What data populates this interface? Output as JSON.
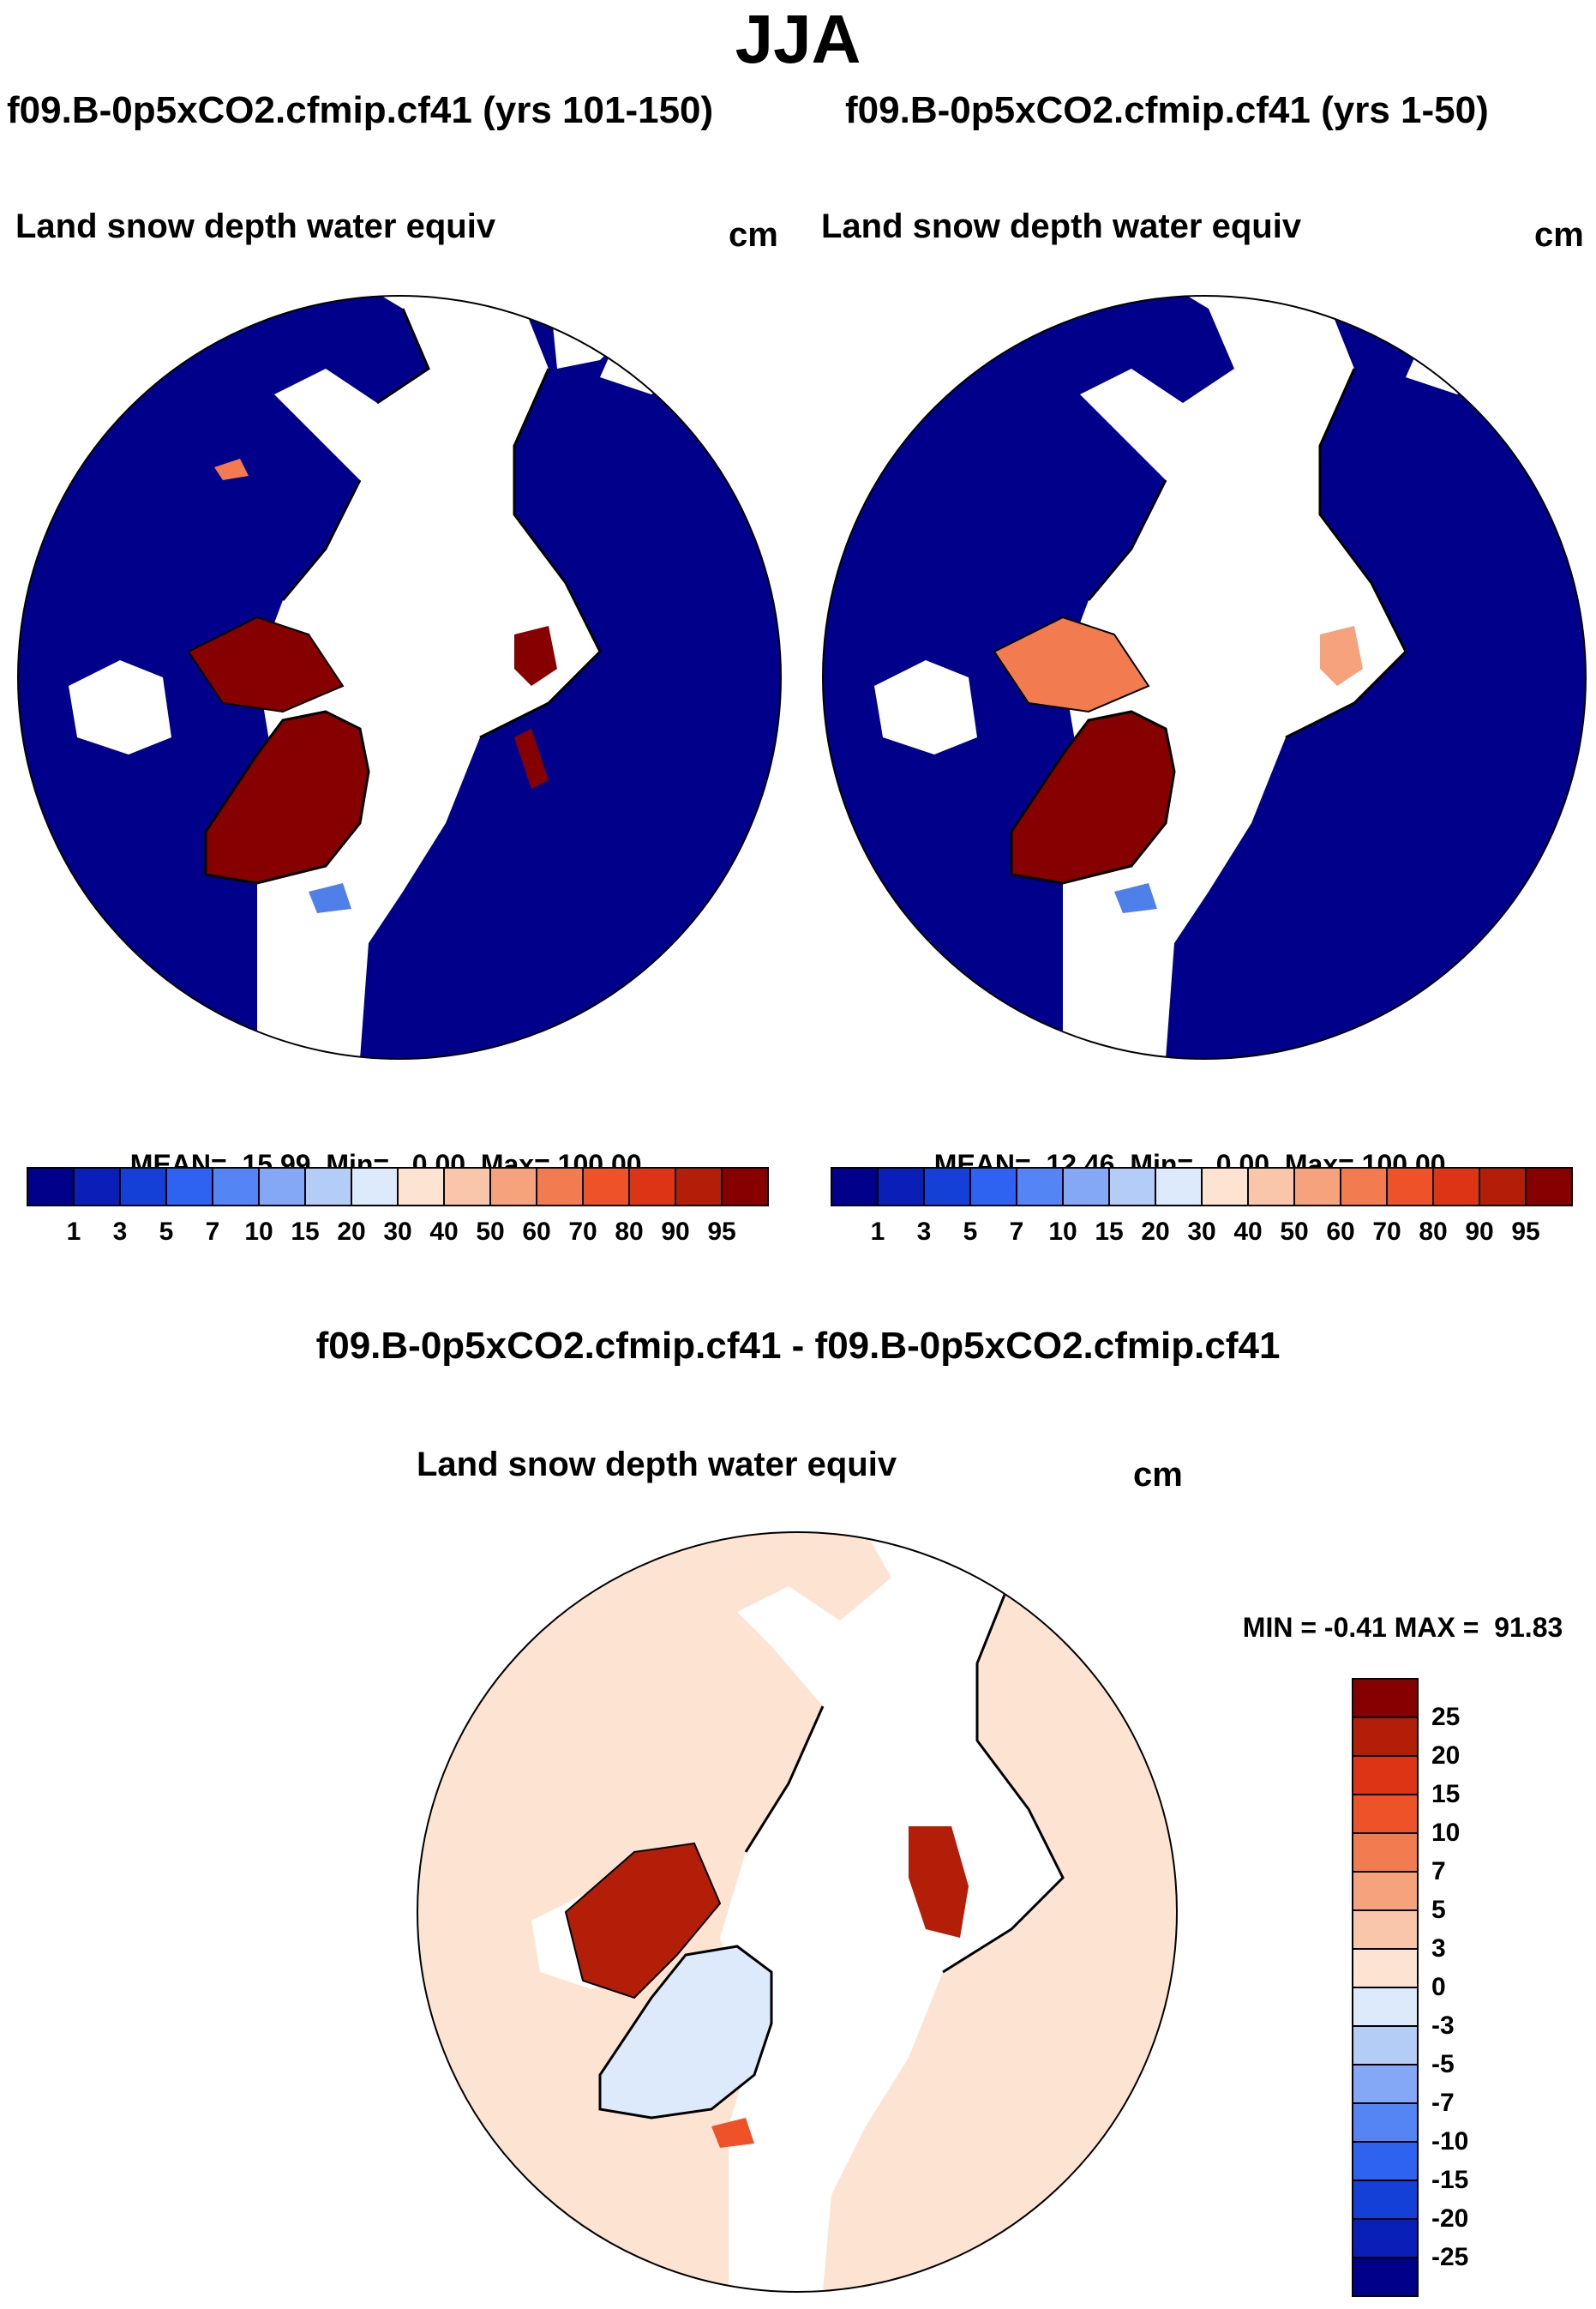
{
  "season": "JJA",
  "panels": [
    {
      "case": "f09.B-0p5xCO2.cfmip.cf41 (yrs 101-150)",
      "variable": "Land snow depth water equiv",
      "units": "cm",
      "stats": {
        "mean_label": "MEAN=",
        "mean": "15.99",
        "min_label": "Min=",
        "min": "0.00",
        "max_label": "Max=",
        "max": "100.00"
      }
    },
    {
      "case": "f09.B-0p5xCO2.cfmip.cf41 (yrs 1-50)",
      "variable": "Land snow depth water equiv",
      "units": "cm",
      "stats": {
        "mean_label": "MEAN=",
        "mean": "12.46",
        "min_label": "Min=",
        "min": "0.00",
        "max_label": "Max=",
        "max": "100.00"
      }
    }
  ],
  "difference": {
    "title": "f09.B-0p5xCO2.cfmip.cf41 - f09.B-0p5xCO2.cfmip.cf41",
    "variable": "Land snow depth water equiv",
    "units": "cm",
    "minmax": {
      "min_label": "MIN =",
      "min": "-0.41",
      "max_label": "MAX =",
      "max": "91.83"
    }
  },
  "chart_data": [
    {
      "type": "heatmap",
      "projection": "north polar stereographic",
      "colorbar": {
        "orientation": "horizontal",
        "levels": [
          "1",
          "3",
          "5",
          "7",
          "10",
          "15",
          "20",
          "30",
          "40",
          "50",
          "60",
          "70",
          "80",
          "90",
          "95"
        ],
        "colors": [
          "#00008b",
          "#0a1fb8",
          "#1440d8",
          "#2e62f0",
          "#5585f5",
          "#85a8f6",
          "#b4cdf7",
          "#dceafb",
          "#fde4d2",
          "#f9c6a9",
          "#f6a27d",
          "#f37b50",
          "#ee5228",
          "#dc3414",
          "#b21e08",
          "#870000"
        ]
      }
    },
    {
      "type": "heatmap",
      "projection": "north polar stereographic",
      "colorbar": {
        "orientation": "horizontal",
        "levels": [
          "1",
          "3",
          "5",
          "7",
          "10",
          "15",
          "20",
          "30",
          "40",
          "50",
          "60",
          "70",
          "80",
          "90",
          "95"
        ],
        "colors": [
          "#00008b",
          "#0a1fb8",
          "#1440d8",
          "#2e62f0",
          "#5585f5",
          "#85a8f6",
          "#b4cdf7",
          "#dceafb",
          "#fde4d2",
          "#f9c6a9",
          "#f6a27d",
          "#f37b50",
          "#ee5228",
          "#dc3414",
          "#b21e08",
          "#870000"
        ]
      }
    },
    {
      "type": "heatmap",
      "projection": "north polar stereographic",
      "colorbar": {
        "orientation": "vertical",
        "levels": [
          "25",
          "20",
          "15",
          "10",
          "7",
          "5",
          "3",
          "0",
          "-3",
          "-5",
          "-7",
          "-10",
          "-15",
          "-20",
          "-25"
        ],
        "colors": [
          "#870000",
          "#b21e08",
          "#dc3414",
          "#ee5228",
          "#f37b50",
          "#f6a27d",
          "#f9c6a9",
          "#fde4d2",
          "#dceafb",
          "#b4cdf7",
          "#85a8f6",
          "#5585f5",
          "#2e62f0",
          "#1440d8",
          "#0a1fb8",
          "#00008b"
        ]
      }
    }
  ],
  "colors": {
    "ocean": "#ffffff",
    "low": "#00008b",
    "high": "#870000",
    "diff_bg": "#fde4d2",
    "diff_neg": "#dceafb",
    "coast": "#000000"
  }
}
